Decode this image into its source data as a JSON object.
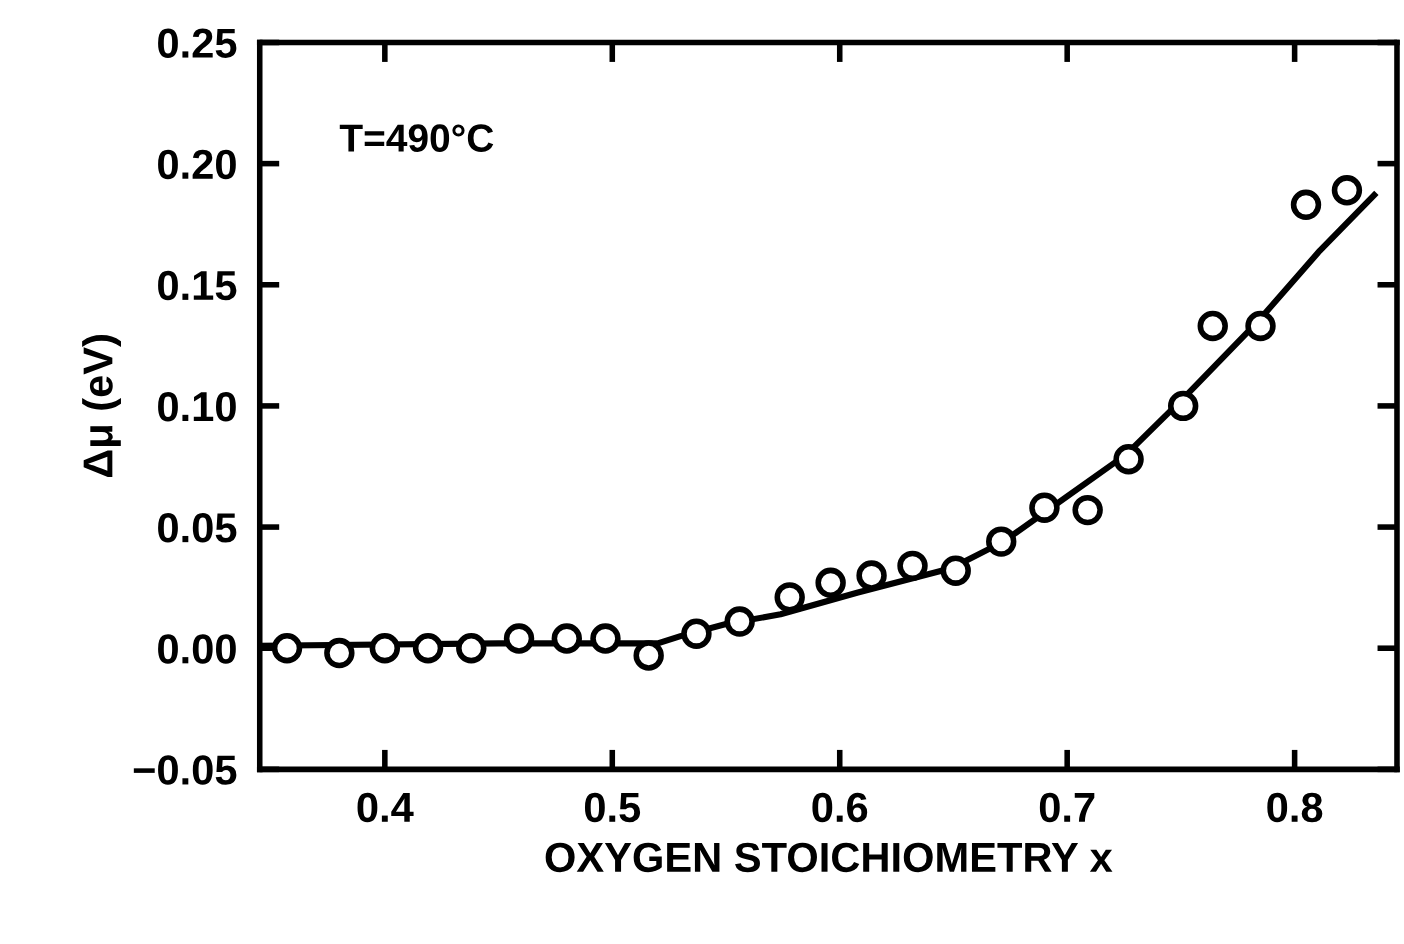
{
  "chart_data": {
    "type": "scatter",
    "xlabel": "OXYGEN STOICHIOMETRY x",
    "ylabel": "Δμ (eV)",
    "annotations": [
      "T=490°C"
    ],
    "xlim": [
      0.345,
      0.845
    ],
    "xticks": [
      0.4,
      0.5,
      0.6,
      0.7,
      0.8
    ],
    "ylim": [
      -0.05,
      0.25
    ],
    "yticks": [
      {
        "value": -0.05,
        "label": "−0.05"
      },
      {
        "value": 0,
        "label": "0.00"
      },
      {
        "value": 0.05,
        "label": "0.05"
      },
      {
        "value": 0.1,
        "label": "0.10"
      },
      {
        "value": 0.15,
        "label": "0.15"
      },
      {
        "value": 0.2,
        "label": "0.20"
      },
      {
        "value": 0.25,
        "label": "0.25"
      }
    ],
    "grid": false,
    "legend": false,
    "series": [
      {
        "marker": "circle",
        "color": "#000000",
        "x": [
          0.357,
          0.38,
          0.4,
          0.419,
          0.438,
          0.459,
          0.48,
          0.497,
          0.516,
          0.537,
          0.556,
          0.578,
          0.596,
          0.614,
          0.632,
          0.651,
          0.671,
          0.69,
          0.709,
          0.727,
          0.751,
          0.764,
          0.785,
          0.805,
          0.823
        ],
        "values": [
          0,
          -0.002,
          0,
          0,
          0,
          0.004,
          0.004,
          0.004,
          -0.003,
          0.006,
          0.011,
          0.021,
          0.027,
          0.03,
          0.034,
          0.032,
          0.044,
          0.058,
          0.057,
          0.078,
          0.1,
          0.133,
          0.133,
          0.183,
          0.189
        ]
      },
      {
        "type": "line",
        "line_style": "solid",
        "color": "#000000",
        "x": [
          0.345,
          0.45,
          0.52,
          0.53,
          0.55,
          0.574,
          0.608,
          0.649,
          0.672,
          0.699,
          0.726,
          0.753,
          0.784,
          0.811,
          0.835
        ],
        "values": [
          0.001,
          0.002,
          0.002,
          0.005,
          0.01,
          0.014,
          0.023,
          0.033,
          0.044,
          0.062,
          0.08,
          0.105,
          0.135,
          0.164,
          0.187
        ]
      }
    ]
  }
}
